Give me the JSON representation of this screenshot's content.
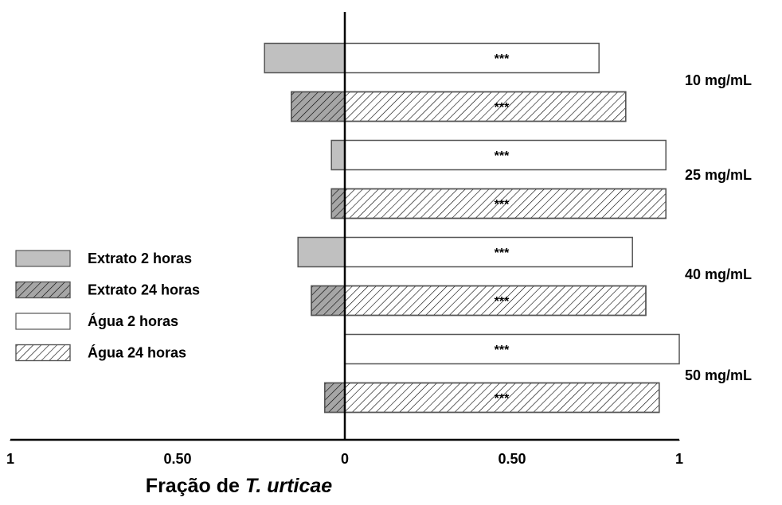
{
  "chart_data": {
    "type": "diverging-bar",
    "xlabel": [
      "Fração de",
      "T. urticae"
    ],
    "categories": [
      "10 mg/mL",
      "25 mg/mL",
      "40 mg/mL",
      "50 mg/mL"
    ],
    "series": [
      {
        "name": "Extrato 2 horas",
        "color": "#c0c0c0",
        "hatch": false,
        "values": [
          -0.24,
          -0.04,
          -0.14,
          0
        ]
      },
      {
        "name": "Extrato 24 horas",
        "color": "#a6a6a6",
        "hatch": true,
        "values": [
          -0.16,
          -0.04,
          -0.1,
          -0.06
        ]
      },
      {
        "name": "Água 2 horas",
        "color": "#ffffff",
        "hatch": false,
        "values": [
          0.76,
          0.96,
          0.86,
          1.0
        ],
        "significance": [
          "***",
          "***",
          "***",
          "***"
        ]
      },
      {
        "name": "Água 24 horas",
        "color": "#ffffff",
        "hatch": true,
        "values": [
          0.84,
          0.96,
          0.9,
          0.94
        ],
        "significance": [
          "***",
          "***",
          "***",
          "***"
        ]
      }
    ],
    "xlim": [
      -1,
      1
    ],
    "xticks": [
      {
        "value": -1,
        "label": "1"
      },
      {
        "value": -0.5,
        "label": "0.50"
      },
      0,
      {
        "value": 0.5,
        "label": "0.50"
      },
      1
    ],
    "legend": "left",
    "grid": false
  }
}
